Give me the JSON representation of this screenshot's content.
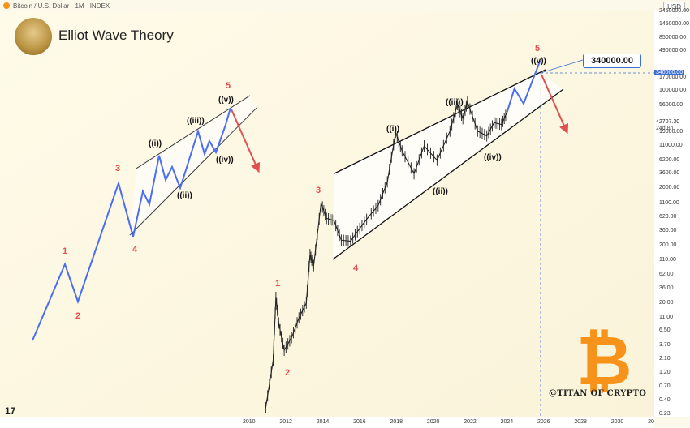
{
  "header": {
    "instrument": "Bitcoin / U.S. Dollar · 1M · INDEX",
    "currency_button": "USD"
  },
  "title": "Elliot Wave Theory",
  "watermark": "@TITAN OF CRYPTO",
  "tv_logo": "17",
  "target_label": "340000.00",
  "price_tags": {
    "target": "340000.00",
    "current": "42707.30",
    "countdown": "24d 8h"
  },
  "colors": {
    "wave_blue": "#4a6ef2",
    "projection_red": "#e05050",
    "channel": "#111111",
    "candle": "#222222",
    "bitcoin_orange": "#f7931a",
    "target_line": "#3b6fd4"
  },
  "icons": [
    "bitcoin-coin-icon",
    "bitcoin-logo-icon",
    "tradingview-logo-icon",
    "author-avatar-icon"
  ],
  "chart_data": {
    "type": "line",
    "scale": "log",
    "xlabel": "",
    "ylabel": "",
    "y_ticks": [
      "2450000.00",
      "1450000.00",
      "850000.00",
      "490000.00",
      "170000.00",
      "100000.00",
      "56000.00",
      "19000.00",
      "11000.00",
      "6200.00",
      "3600.00",
      "2000.00",
      "1100.00",
      "620.00",
      "360.00",
      "200.00",
      "110.00",
      "62.00",
      "36.00",
      "20.00",
      "11.00",
      "6.50",
      "3.70",
      "2.10",
      "1.20",
      "0.70",
      "0.40",
      "0.23"
    ],
    "x_ticks": [
      "2010",
      "2012",
      "2014",
      "2016",
      "2018",
      "2020",
      "2022",
      "2024",
      "2026",
      "2028",
      "2030",
      "20"
    ],
    "target_price": 340000,
    "current_price": 42707.3,
    "target_year": "2026",
    "wave_labels_primary": [
      "1",
      "2",
      "3",
      "4",
      "5"
    ],
    "wave_labels_sub": [
      "((i))",
      "((ii))",
      "((iii))",
      "((iv))",
      "((v))"
    ],
    "price_history_log": [
      {
        "t": 2010.9,
        "v": 0.3
      },
      {
        "t": 2011.3,
        "v": 2.0
      },
      {
        "t": 2011.45,
        "v": 25
      },
      {
        "t": 2011.6,
        "v": 9
      },
      {
        "t": 2011.9,
        "v": 3
      },
      {
        "t": 2012.3,
        "v": 5
      },
      {
        "t": 2012.7,
        "v": 11
      },
      {
        "t": 2013.1,
        "v": 20
      },
      {
        "t": 2013.3,
        "v": 140
      },
      {
        "t": 2013.5,
        "v": 90
      },
      {
        "t": 2013.9,
        "v": 1100
      },
      {
        "t": 2014.2,
        "v": 600
      },
      {
        "t": 2014.6,
        "v": 550
      },
      {
        "t": 2015.0,
        "v": 250
      },
      {
        "t": 2015.5,
        "v": 240
      },
      {
        "t": 2016.0,
        "v": 400
      },
      {
        "t": 2016.5,
        "v": 650
      },
      {
        "t": 2017.0,
        "v": 1000
      },
      {
        "t": 2017.5,
        "v": 2600
      },
      {
        "t": 2017.95,
        "v": 19000
      },
      {
        "t": 2018.3,
        "v": 9000
      },
      {
        "t": 2018.95,
        "v": 3600
      },
      {
        "t": 2019.5,
        "v": 11000
      },
      {
        "t": 2020.2,
        "v": 6200
      },
      {
        "t": 2020.9,
        "v": 20000
      },
      {
        "t": 2021.3,
        "v": 58000
      },
      {
        "t": 2021.6,
        "v": 33000
      },
      {
        "t": 2021.85,
        "v": 65000
      },
      {
        "t": 2022.4,
        "v": 20000
      },
      {
        "t": 2022.9,
        "v": 16500
      },
      {
        "t": 2023.3,
        "v": 28000
      },
      {
        "t": 2023.7,
        "v": 26000
      },
      {
        "t": 2024.0,
        "v": 42707
      }
    ],
    "projection": [
      {
        "t": 2024.0,
        "v": 42707
      },
      {
        "t": 2024.4,
        "v": 110000
      },
      {
        "t": 2024.9,
        "v": 60000
      },
      {
        "t": 2025.8,
        "v": 340000
      }
    ]
  }
}
